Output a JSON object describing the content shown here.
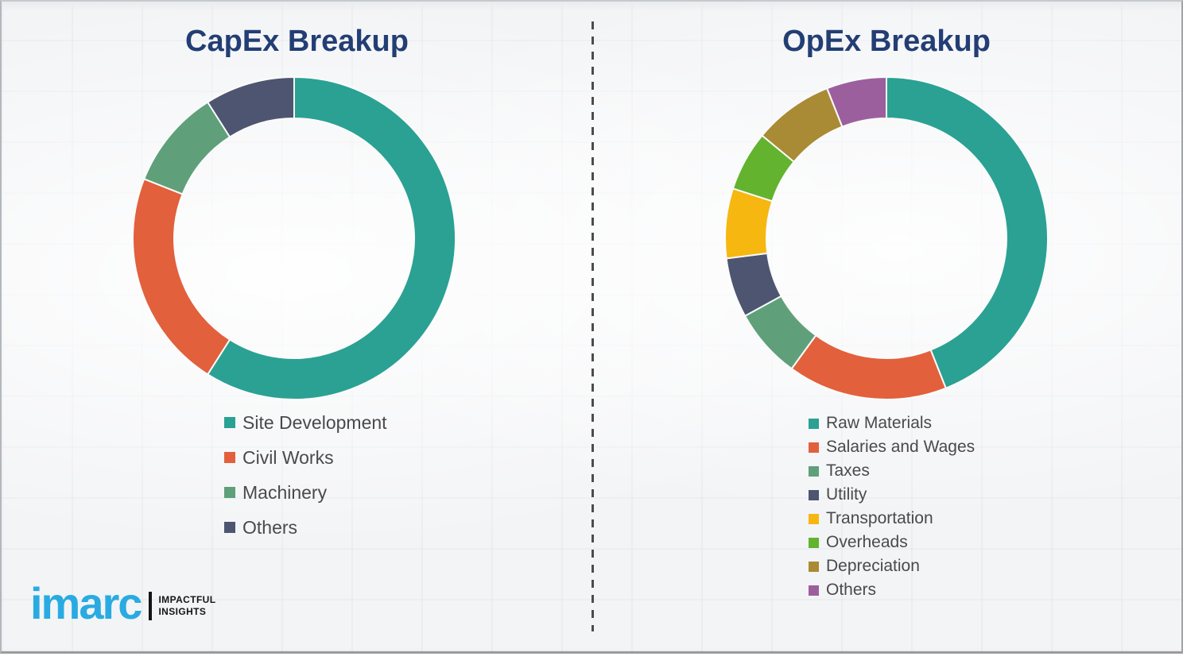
{
  "branding": {
    "logo_text": "imarc",
    "tagline_line1": "IMPACTFUL",
    "tagline_line2": "INSIGHTS",
    "logo_color": "#29ABE2"
  },
  "colors": {
    "title_text": "#233E74",
    "legend_text": "#4a4a4a",
    "divider": "#4c4c4c",
    "segment_gap_stroke": "#fafbfb",
    "slide_background": "#f3f4f6"
  },
  "chart_data": [
    {
      "type": "pie",
      "subtype": "donut",
      "title": "CapEx Breakup",
      "categories": [
        "Site Development",
        "Civil Works",
        "Machinery",
        "Others"
      ],
      "values": [
        59,
        22,
        10,
        9
      ],
      "values_estimated_from_arc_angles": true,
      "colors": [
        "#2AA193",
        "#E2603C",
        "#5FA07A",
        "#4D5570"
      ],
      "start_angle_deg": 0,
      "direction": "clockwise",
      "legend_position": "below",
      "data_labels_shown": false
    },
    {
      "type": "pie",
      "subtype": "donut",
      "title": "OpEx Breakup",
      "categories": [
        "Raw Materials",
        "Salaries and Wages",
        "Taxes",
        "Utility",
        "Transportation",
        "Overheads",
        "Depreciation",
        "Others"
      ],
      "values": [
        44,
        16,
        7,
        6,
        7,
        6,
        8,
        6
      ],
      "values_estimated_from_arc_angles": true,
      "colors": [
        "#2AA193",
        "#E2603C",
        "#5FA07A",
        "#4D5570",
        "#F6B711",
        "#63B32E",
        "#A98B35",
        "#9C5F9E"
      ],
      "start_angle_deg": 0,
      "direction": "clockwise",
      "legend_position": "below",
      "data_labels_shown": false
    }
  ]
}
